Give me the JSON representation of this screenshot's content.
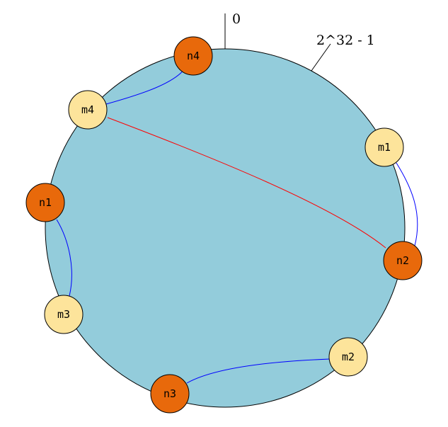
{
  "ring": {
    "fill": "#93ccdb",
    "stroke": "#000000",
    "start_label": "0",
    "end_label": "2^32 - 1"
  },
  "node_colors": {
    "n": "#e8690b",
    "m": "#fde49b"
  },
  "nodes": [
    {
      "id": "n4",
      "label": "n4",
      "kind": "n"
    },
    {
      "id": "m4",
      "label": "m4",
      "kind": "m"
    },
    {
      "id": "m1",
      "label": "m1",
      "kind": "m"
    },
    {
      "id": "n1",
      "label": "n1",
      "kind": "n"
    },
    {
      "id": "n2",
      "label": "n2",
      "kind": "n"
    },
    {
      "id": "m3",
      "label": "m3",
      "kind": "m"
    },
    {
      "id": "m2",
      "label": "m2",
      "kind": "m"
    },
    {
      "id": "n3",
      "label": "n3",
      "kind": "n"
    }
  ],
  "links": [
    {
      "from": "m4",
      "to": "n4",
      "color": "#0000ff"
    },
    {
      "from": "m1",
      "to": "n2",
      "color": "#0000ff"
    },
    {
      "from": "n1",
      "to": "m3",
      "color": "#0000ff"
    },
    {
      "from": "n3",
      "to": "m2",
      "color": "#0000ff"
    },
    {
      "from": "m4",
      "to": "n2",
      "color": "#ff0000"
    }
  ]
}
